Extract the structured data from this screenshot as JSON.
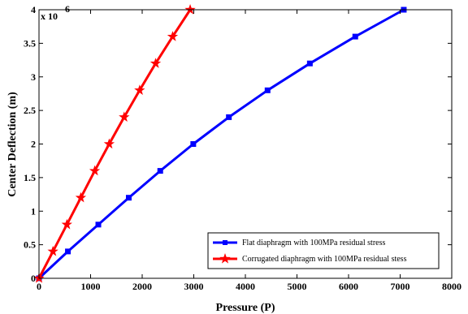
{
  "chart_data": {
    "type": "line",
    "title": "",
    "xlabel": "Pressure (P)",
    "ylabel": "Center Deflection (m)",
    "y_scale_base": "x 10",
    "y_scale_exponent": "-6",
    "xlim": [
      0,
      8000
    ],
    "ylim": [
      0,
      4
    ],
    "x_ticks": [
      0,
      1000,
      2000,
      3000,
      4000,
      5000,
      6000,
      7000,
      8000
    ],
    "y_ticks": [
      0,
      0.5,
      1,
      1.5,
      2,
      2.5,
      3,
      3.5,
      4
    ],
    "x_tick_labels": [
      "0",
      "1000",
      "2000",
      "3000",
      "4000",
      "5000",
      "6000",
      "7000",
      "8000"
    ],
    "y_tick_labels": [
      "0",
      "0.5",
      "1",
      "1.5",
      "2",
      "2.5",
      "3",
      "3.5",
      "4"
    ],
    "grid": false,
    "legend_position": "bottom-right",
    "series": [
      {
        "name": "Flat diaphragm with 100MPa residual stress",
        "color": "#0000ff",
        "marker": "square",
        "x": [
          0,
          560,
          1150,
          1740,
          2350,
          2990,
          3680,
          4430,
          5250,
          6130,
          7070
        ],
        "y": [
          0,
          0.4,
          0.8,
          1.2,
          1.6,
          2.0,
          2.4,
          2.8,
          3.2,
          3.6,
          4.0
        ]
      },
      {
        "name": "Corrugated diaphragm with 100MPa residual stess",
        "color": "#ff0000",
        "marker": "star",
        "x": [
          0,
          270,
          540,
          810,
          1080,
          1360,
          1650,
          1950,
          2260,
          2590,
          2930
        ],
        "y": [
          0,
          0.4,
          0.8,
          1.2,
          1.6,
          2.0,
          2.4,
          2.8,
          3.2,
          3.6,
          4.0
        ]
      }
    ]
  }
}
